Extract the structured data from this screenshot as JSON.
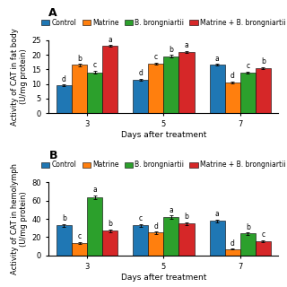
{
  "chart_data": [
    {
      "type": "bar",
      "title": "A",
      "x_label": "Days after treatment",
      "y_label": "Activity of CAT in fat body\n(U/mg protein)",
      "categories": [
        "3",
        "5",
        "7"
      ],
      "ylim": [
        0,
        25
      ],
      "yticks": [
        0,
        5,
        10,
        15,
        20,
        25
      ],
      "legend": "upper center",
      "series": [
        {
          "name": "Control",
          "values": [
            9.5,
            11.5,
            16.5
          ],
          "errors": [
            0.3,
            0.3,
            0.3
          ],
          "annotations": [
            "d",
            "d",
            "a"
          ]
        },
        {
          "name": "Matrine",
          "values": [
            16.5,
            17.0,
            10.5
          ],
          "errors": [
            0.4,
            0.3,
            0.3
          ],
          "annotations": [
            "b",
            "c",
            "d"
          ]
        },
        {
          "name": "B. brongniartii",
          "values": [
            14.0,
            19.5,
            14.0
          ],
          "errors": [
            0.5,
            0.4,
            0.3
          ],
          "annotations": [
            "c",
            "b",
            "c"
          ]
        },
        {
          "name": "Matrine + B. brongniartii",
          "values": [
            23.0,
            21.0,
            15.5
          ],
          "errors": [
            0.3,
            0.4,
            0.3
          ],
          "annotations": [
            "a",
            "a",
            "b"
          ]
        }
      ]
    },
    {
      "type": "bar",
      "title": "B",
      "x_label": "Days after treatment",
      "y_label": "Activity of CAT in hemolymph\n(U/mg protein)",
      "categories": [
        "3",
        "5",
        "7"
      ],
      "ylim": [
        0,
        80
      ],
      "yticks": [
        0,
        20,
        40,
        60,
        80
      ],
      "legend": "upper center",
      "series": [
        {
          "name": "Control",
          "values": [
            33.0,
            33.0,
            38.0
          ],
          "errors": [
            1.5,
            1.5,
            1.5
          ],
          "annotations": [
            "b",
            "c",
            "a"
          ]
        },
        {
          "name": "Matrine",
          "values": [
            14.0,
            25.0,
            7.0
          ],
          "errors": [
            1.0,
            1.2,
            0.5
          ],
          "annotations": [
            "c",
            "d",
            "d"
          ]
        },
        {
          "name": "B. brongniartii",
          "values": [
            64.0,
            42.0,
            24.0
          ],
          "errors": [
            2.0,
            1.8,
            1.2
          ],
          "annotations": [
            "a",
            "a",
            "b"
          ]
        },
        {
          "name": "Matrine + B. brongniartii",
          "values": [
            27.0,
            35.0,
            16.0
          ],
          "errors": [
            1.2,
            1.5,
            1.0
          ],
          "annotations": [
            "b",
            "b",
            "c"
          ]
        }
      ]
    }
  ]
}
